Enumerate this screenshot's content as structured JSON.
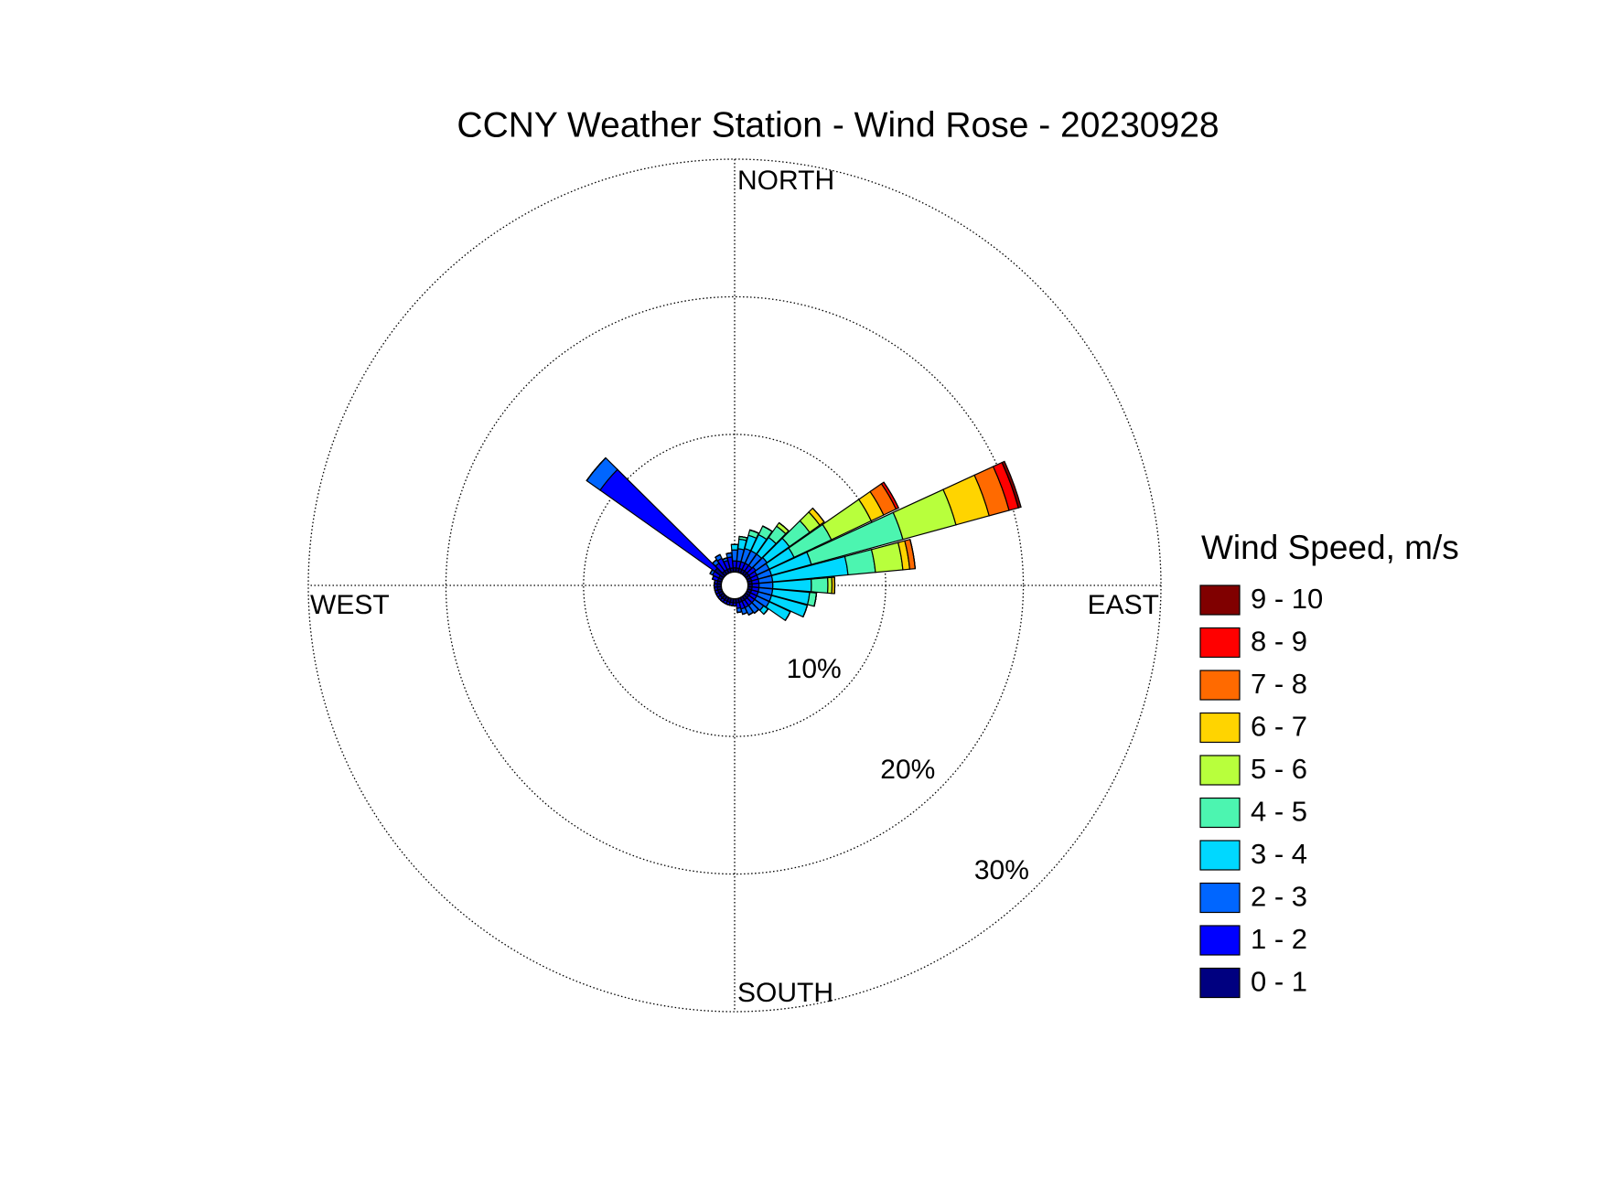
{
  "chart_data": {
    "type": "windrose",
    "title": "CCNY Weather Station - Wind Rose - 20230928",
    "direction_labels": [
      "NORTH",
      "EAST",
      "SOUTH",
      "WEST"
    ],
    "legend_title": "Wind Speed, m/s",
    "x": [
      0,
      10,
      20,
      30,
      40,
      50,
      60,
      70,
      80,
      90,
      100,
      110,
      120,
      130,
      140,
      150,
      160,
      170,
      180,
      190,
      200,
      210,
      220,
      230,
      240,
      250,
      260,
      270,
      280,
      290,
      300,
      310,
      320,
      330,
      340,
      350
    ],
    "rlim": [
      0,
      30
    ],
    "rticks": [
      {
        "value": 10,
        "label": "10%"
      },
      {
        "value": 20,
        "label": "20%"
      },
      {
        "value": 30,
        "label": "30%"
      }
    ],
    "series": [
      {
        "name": "0 - 1",
        "color": "#000080",
        "values": [
          0.3,
          0.3,
          0.3,
          0.3,
          0.3,
          0.3,
          0.3,
          0.3,
          0.3,
          0.3,
          0.3,
          0.3,
          0.3,
          0.3,
          0.3,
          0.3,
          0.3,
          0.3,
          0.3,
          0.3,
          0.3,
          0.3,
          0.3,
          0.3,
          0.3,
          0.3,
          0.3,
          0.3,
          0.3,
          0.3,
          0.3,
          0.8,
          0.3,
          0.3,
          0.3,
          0.3
        ]
      },
      {
        "name": "1 - 2",
        "color": "#0000ff",
        "values": [
          0.5,
          0.5,
          0.5,
          0.5,
          0.5,
          0.6,
          0.5,
          0.5,
          0.5,
          0.5,
          0.5,
          0.5,
          0.5,
          0.5,
          0.5,
          0.5,
          0.5,
          0.4,
          0.2,
          0.2,
          0.2,
          0.2,
          0.2,
          0.2,
          0.2,
          0.2,
          0.2,
          0.2,
          0.2,
          0.4,
          0.5,
          10.2,
          0.7,
          0.9,
          0.6,
          0.8
        ]
      },
      {
        "name": "2 - 3",
        "color": "#0066ff",
        "values": [
          0.8,
          0.9,
          1,
          1,
          1,
          1,
          1,
          1,
          1,
          1,
          1,
          1,
          1,
          0.8,
          0.7,
          0.6,
          0.4,
          0.3,
          0,
          0,
          0,
          0,
          0,
          0,
          0,
          0,
          0,
          0,
          0,
          0,
          0.2,
          1.2,
          0.3,
          0.3,
          0.2,
          0.3
        ]
      },
      {
        "name": "3 - 4",
        "color": "#00d8ff",
        "values": [
          0.4,
          0.7,
          1,
          1.3,
          1.5,
          2,
          2,
          3,
          5.5,
          2.8,
          2.7,
          2.7,
          1.7,
          0.4,
          0,
          0,
          0,
          0,
          0,
          0,
          0,
          0,
          0,
          0,
          0,
          0,
          0,
          0,
          0,
          0,
          0,
          0,
          0,
          0,
          0,
          0
        ]
      },
      {
        "name": "4 - 5",
        "color": "#4cf5b0",
        "values": [
          0,
          0.2,
          0.4,
          0.7,
          1,
          1.8,
          3,
          6.9,
          2,
          1.2,
          0.5,
          0,
          0,
          0,
          0,
          0,
          0,
          0,
          0,
          0,
          0,
          0,
          0,
          0,
          0,
          0,
          0,
          0,
          0,
          0,
          0,
          0,
          0,
          0,
          0,
          0
        ]
      },
      {
        "name": "5 - 6",
        "color": "#b8ff3c",
        "values": [
          0,
          0,
          0,
          0,
          0.3,
          0.9,
          3.2,
          4,
          2,
          0.3,
          0,
          0,
          0,
          0,
          0,
          0,
          0,
          0,
          0,
          0,
          0,
          0,
          0,
          0,
          0,
          0,
          0,
          0,
          0,
          0,
          0,
          0,
          0,
          0,
          0,
          0
        ]
      },
      {
        "name": "6 - 7",
        "color": "#ffd400",
        "values": [
          0,
          0,
          0,
          0,
          0,
          0.4,
          1,
          2.5,
          0.5,
          0.2,
          0,
          0,
          0,
          0,
          0,
          0,
          0,
          0,
          0,
          0,
          0,
          0,
          0,
          0,
          0,
          0,
          0,
          0,
          0,
          0,
          0,
          0,
          0,
          0,
          0,
          0
        ]
      },
      {
        "name": "7 - 8",
        "color": "#ff6a00",
        "values": [
          0,
          0,
          0,
          0,
          0,
          0,
          1,
          1.5,
          0.4,
          0,
          0,
          0,
          0,
          0,
          0,
          0,
          0,
          0,
          0,
          0,
          0,
          0,
          0,
          0,
          0,
          0,
          0,
          0,
          0,
          0,
          0,
          0,
          0,
          0,
          0,
          0
        ]
      },
      {
        "name": "8 - 9",
        "color": "#ff0000",
        "values": [
          0,
          0,
          0,
          0,
          0,
          0,
          0.2,
          0.7,
          0,
          0,
          0,
          0,
          0,
          0,
          0,
          0,
          0,
          0,
          0,
          0,
          0,
          0,
          0,
          0,
          0,
          0,
          0,
          0,
          0,
          0,
          0,
          0,
          0,
          0,
          0,
          0
        ]
      },
      {
        "name": "9 - 10",
        "color": "#800000",
        "values": [
          0,
          0,
          0,
          0,
          0,
          0,
          0,
          0.2,
          0,
          0,
          0,
          0,
          0,
          0,
          0,
          0,
          0,
          0,
          0,
          0,
          0,
          0,
          0,
          0,
          0,
          0,
          0,
          0,
          0,
          0,
          0,
          0,
          0,
          0,
          0,
          0
        ]
      }
    ]
  }
}
